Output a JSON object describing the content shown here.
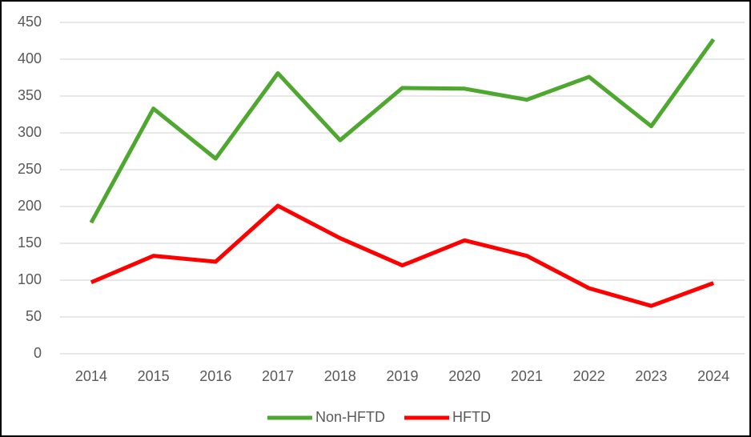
{
  "chart_data": {
    "type": "line",
    "categories": [
      "2014",
      "2015",
      "2016",
      "2017",
      "2018",
      "2019",
      "2020",
      "2021",
      "2022",
      "2023",
      "2024"
    ],
    "series": [
      {
        "name": "Non-HFTD",
        "color": "#4ea72e",
        "values": [
          178,
          333,
          265,
          381,
          290,
          361,
          360,
          345,
          376,
          309,
          427
        ]
      },
      {
        "name": "HFTD",
        "color": "#ff0000",
        "values": [
          97,
          133,
          125,
          201,
          157,
          120,
          154,
          133,
          89,
          65,
          96
        ]
      }
    ],
    "ylim": [
      0,
      450
    ],
    "yticks": [
      0,
      50,
      100,
      150,
      200,
      250,
      300,
      350,
      400,
      450
    ],
    "grid": true,
    "legend": "bottom"
  }
}
